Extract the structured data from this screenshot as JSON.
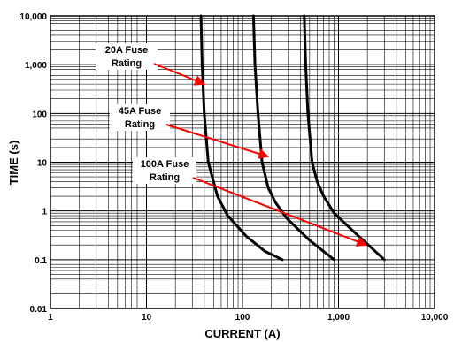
{
  "chart_data": {
    "type": "line",
    "title": "",
    "xlabel": "CURRENT (A)",
    "ylabel": "TIME (s)",
    "x_scale": "log",
    "y_scale": "log",
    "xlim": [
      1,
      10000
    ],
    "ylim": [
      0.01,
      10000
    ],
    "grid": true,
    "x_ticks": [
      {
        "value": 1,
        "label": "1"
      },
      {
        "value": 10,
        "label": "10"
      },
      {
        "value": 100,
        "label": "100"
      },
      {
        "value": 1000,
        "label": "1,000"
      },
      {
        "value": 10000,
        "label": "10,000"
      }
    ],
    "y_ticks": [
      {
        "value": 0.01,
        "label": "0.01"
      },
      {
        "value": 0.1,
        "label": "0.1"
      },
      {
        "value": 1,
        "label": "1"
      },
      {
        "value": 10,
        "label": "10"
      },
      {
        "value": 100,
        "label": "100"
      },
      {
        "value": 1000,
        "label": "1,000"
      },
      {
        "value": 10000,
        "label": "10,000"
      }
    ],
    "series": [
      {
        "points": [
          [
            37,
            10000
          ],
          [
            38,
            1000
          ],
          [
            40,
            100
          ],
          [
            44,
            10
          ],
          [
            55,
            2
          ],
          [
            70,
            0.8
          ],
          [
            110,
            0.3
          ],
          [
            170,
            0.15
          ],
          [
            260,
            0.1
          ]
        ]
      },
      {
        "points": [
          [
            130,
            10000
          ],
          [
            135,
            1000
          ],
          [
            145,
            100
          ],
          [
            160,
            10
          ],
          [
            185,
            3
          ],
          [
            220,
            1.5
          ],
          [
            290,
            0.7
          ],
          [
            500,
            0.25
          ],
          [
            900,
            0.1
          ]
        ]
      },
      {
        "points": [
          [
            440,
            10000
          ],
          [
            455,
            1000
          ],
          [
            480,
            100
          ],
          [
            530,
            10
          ],
          [
            600,
            4
          ],
          [
            700,
            2
          ],
          [
            900,
            0.9
          ],
          [
            1500,
            0.35
          ],
          [
            3000,
            0.1
          ]
        ]
      }
    ],
    "annotations": [
      {
        "lines": [
          "20A Fuse",
          "Rating"
        ],
        "target": [
          40,
          400
        ]
      },
      {
        "lines": [
          "45A Fuse",
          "Rating"
        ],
        "target": [
          185,
          13
        ]
      },
      {
        "lines": [
          "100A Fuse",
          "Rating"
        ],
        "target": [
          1950,
          0.2
        ]
      }
    ],
    "colors": {
      "curve": "#000000",
      "arrow": "#ff0000",
      "grid": "#000000"
    }
  }
}
